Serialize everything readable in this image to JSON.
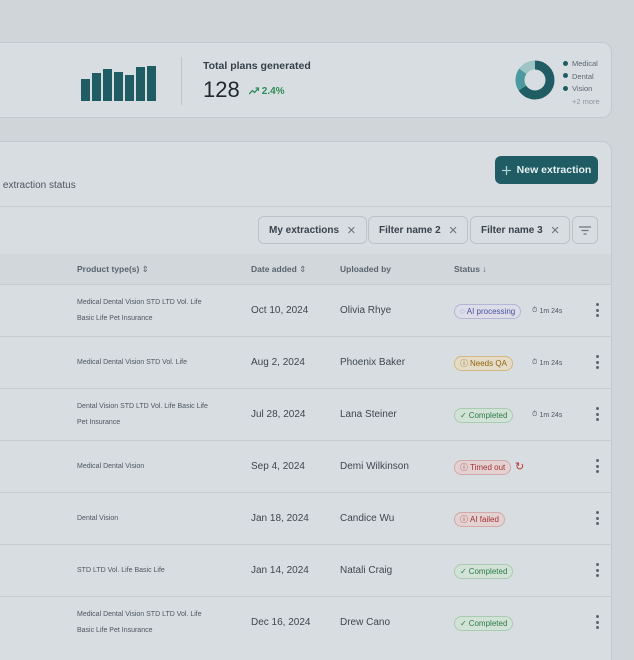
{
  "stats": {
    "label": "Total plans generated",
    "value": "128",
    "change": "2.4%",
    "bars": [
      0.62,
      0.78,
      0.9,
      0.8,
      0.72,
      0.95,
      0.98
    ],
    "legend": [
      "Medical",
      "Dental",
      "Vision"
    ],
    "legend_more": "+2 more",
    "accent_color": "#1f5c63",
    "positive_color": "#2e8c57"
  },
  "header": {
    "subtitle_partial": "eir extraction status",
    "new_button_label": "New extraction",
    "new_button_icon": "plus-icon"
  },
  "filters": [
    {
      "label": "My extractions"
    },
    {
      "label": "Filter name 2"
    },
    {
      "label": "Filter name 3"
    }
  ],
  "columns": {
    "product": "Product type(s)",
    "date": "Date added",
    "uploader": "Uploaded by",
    "status": "Status"
  },
  "rows": [
    {
      "products": [
        "Medical Dental Vision STD LTD Vol. Life",
        "Basic Life Pet Insurance"
      ],
      "date": "Oct 10, 2024",
      "uploader": "Olivia Rhye",
      "status": "AI processing",
      "status_kind": "processing",
      "status_icon": "spinner-icon",
      "timer": "1m 24s",
      "retry": false
    },
    {
      "products": [
        "Medical Dental Vision STD Vol. Life"
      ],
      "date": "Aug 2, 2024",
      "uploader": "Phoenix Baker",
      "status": "Needs QA",
      "status_kind": "qa",
      "status_icon": "alert-circle-icon",
      "timer": "1m 24s",
      "retry": false
    },
    {
      "products": [
        "Dental Vision STD LTD Vol. Life Basic Life",
        "Pet Insurance"
      ],
      "date": "Jul 28, 2024",
      "uploader": "Lana Steiner",
      "status": "Completed",
      "status_kind": "completed",
      "status_icon": "check-icon",
      "timer": "1m 24s",
      "retry": false
    },
    {
      "products": [
        "Medical Dental Vision"
      ],
      "date": "Sep 4, 2024",
      "uploader": "Demi Wilkinson",
      "status": "Timed out",
      "status_kind": "error",
      "status_icon": "alert-circle-icon",
      "timer": "",
      "retry": true
    },
    {
      "products": [
        "Dental Vision"
      ],
      "date": "Jan 18, 2024",
      "uploader": "Candice Wu",
      "status": "AI failed",
      "status_kind": "error",
      "status_icon": "alert-circle-icon",
      "timer": "",
      "retry": false
    },
    {
      "products": [
        "STD LTD Vol. Life Basic Life"
      ],
      "date": "Jan 14, 2024",
      "uploader": "Natali Craig",
      "status": "Completed",
      "status_kind": "completed",
      "status_icon": "check-icon",
      "timer": "",
      "retry": false
    },
    {
      "products": [
        "Medical Dental Vision STD LTD Vol. Life",
        "Basic Life Pet Insurance"
      ],
      "date": "Dec 16, 2024",
      "uploader": "Drew Cano",
      "status": "Completed",
      "status_kind": "completed",
      "status_icon": "check-icon",
      "timer": "",
      "retry": false
    }
  ]
}
